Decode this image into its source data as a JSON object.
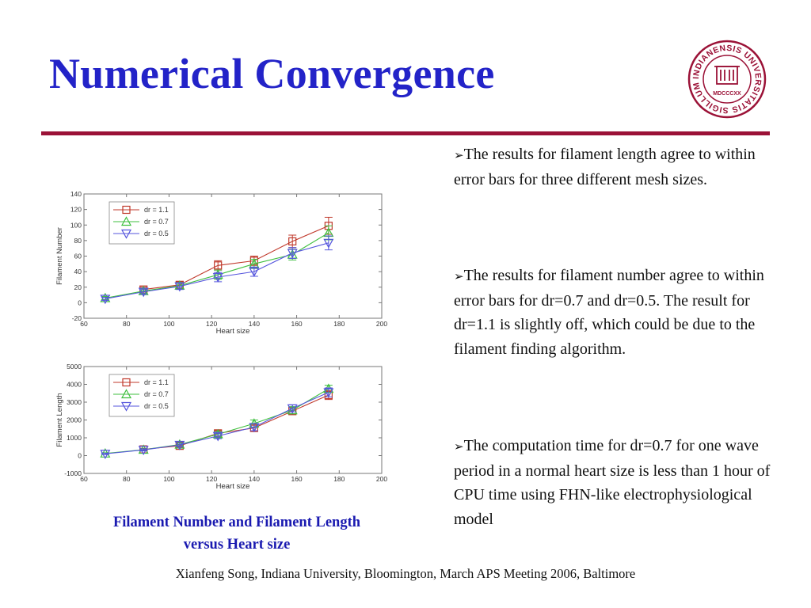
{
  "slide": {
    "title": "Numerical Convergence",
    "caption_line1": "Filament Number and Filament Length",
    "caption_line2": "versus Heart size",
    "footer": "Xianfeng Song, Indiana University, Bloomington, March APS Meeting 2006, Baltimore",
    "bullet_marker": "➢",
    "bullets": [
      "The results for filament length agree to within error bars for three different mesh sizes.",
      "The results for filament number agree to within error bars for dr=0.7 and dr=0.5. The result for dr=1.1 is slightly off, which could be due to the filament finding algorithm.",
      "The computation time for dr=0.7 for one wave period in a normal heart size is less than 1 hour of CPU time using FHN-like electrophysiological model"
    ]
  },
  "seal": {
    "icon": "university-seal-icon",
    "color": "#9b1237",
    "ring_text": "INDIANENSIS UNIVERSITATIS SIGILLUM",
    "year_text": "MDCCCXX"
  },
  "colors": {
    "title": "#2323c8",
    "rule": "#9b1237",
    "caption": "#1a1ab0"
  },
  "chart_data": [
    {
      "type": "line",
      "xlabel": "Heart size",
      "ylabel": "Filament Number",
      "xlim": [
        60,
        200
      ],
      "ylim": [
        -20,
        140
      ],
      "xticks": [
        60,
        80,
        100,
        120,
        140,
        160,
        180,
        200
      ],
      "yticks": [
        -20,
        0,
        20,
        40,
        60,
        80,
        100,
        120,
        140
      ],
      "legend_position": "top-left",
      "series": [
        {
          "name": "dr = 1.1",
          "color": "#c0392b",
          "marker": "square",
          "x": [
            88,
            105,
            123,
            140,
            158,
            175
          ],
          "y": [
            17,
            23,
            48,
            54,
            79,
            99
          ],
          "err": [
            3,
            4,
            6,
            6,
            8,
            11
          ]
        },
        {
          "name": "dr = 0.7",
          "color": "#3fbf3f",
          "marker": "triangle-up",
          "x": [
            70,
            88,
            105,
            123,
            140,
            158,
            175
          ],
          "y": [
            6,
            15,
            22,
            36,
            50,
            62,
            90
          ],
          "err": [
            2,
            3,
            4,
            6,
            6,
            7,
            9
          ]
        },
        {
          "name": "dr = 0.5",
          "color": "#5555dd",
          "marker": "triangle-down",
          "x": [
            70,
            88,
            105,
            123,
            140,
            158,
            175
          ],
          "y": [
            5,
            14,
            21,
            33,
            40,
            64,
            77
          ],
          "err": [
            2,
            3,
            4,
            6,
            6,
            7,
            9
          ]
        }
      ]
    },
    {
      "type": "line",
      "xlabel": "Heart size",
      "ylabel": "Filament Length",
      "xlim": [
        60,
        200
      ],
      "ylim": [
        -1000,
        5000
      ],
      "xticks": [
        60,
        80,
        100,
        120,
        140,
        160,
        180,
        200
      ],
      "yticks": [
        -1000,
        0,
        1000,
        2000,
        3000,
        4000,
        5000
      ],
      "legend_position": "top-left",
      "series": [
        {
          "name": "dr = 1.1",
          "color": "#c0392b",
          "marker": "square",
          "x": [
            88,
            105,
            123,
            140,
            158,
            175
          ],
          "y": [
            350,
            550,
            1250,
            1550,
            2500,
            3400
          ],
          "err": [
            60,
            80,
            150,
            150,
            200,
            250
          ]
        },
        {
          "name": "dr = 0.7",
          "color": "#3fbf3f",
          "marker": "triangle-up",
          "x": [
            70,
            88,
            105,
            123,
            140,
            158,
            175
          ],
          "y": [
            120,
            330,
            620,
            1200,
            1800,
            2550,
            3750
          ],
          "err": [
            40,
            60,
            100,
            150,
            200,
            200,
            200
          ]
        },
        {
          "name": "dr = 0.5",
          "color": "#5555dd",
          "marker": "triangle-down",
          "x": [
            70,
            88,
            105,
            123,
            140,
            158,
            175
          ],
          "y": [
            100,
            320,
            600,
            1100,
            1600,
            2650,
            3550
          ],
          "err": [
            40,
            60,
            100,
            150,
            200,
            200,
            250
          ]
        }
      ]
    }
  ]
}
